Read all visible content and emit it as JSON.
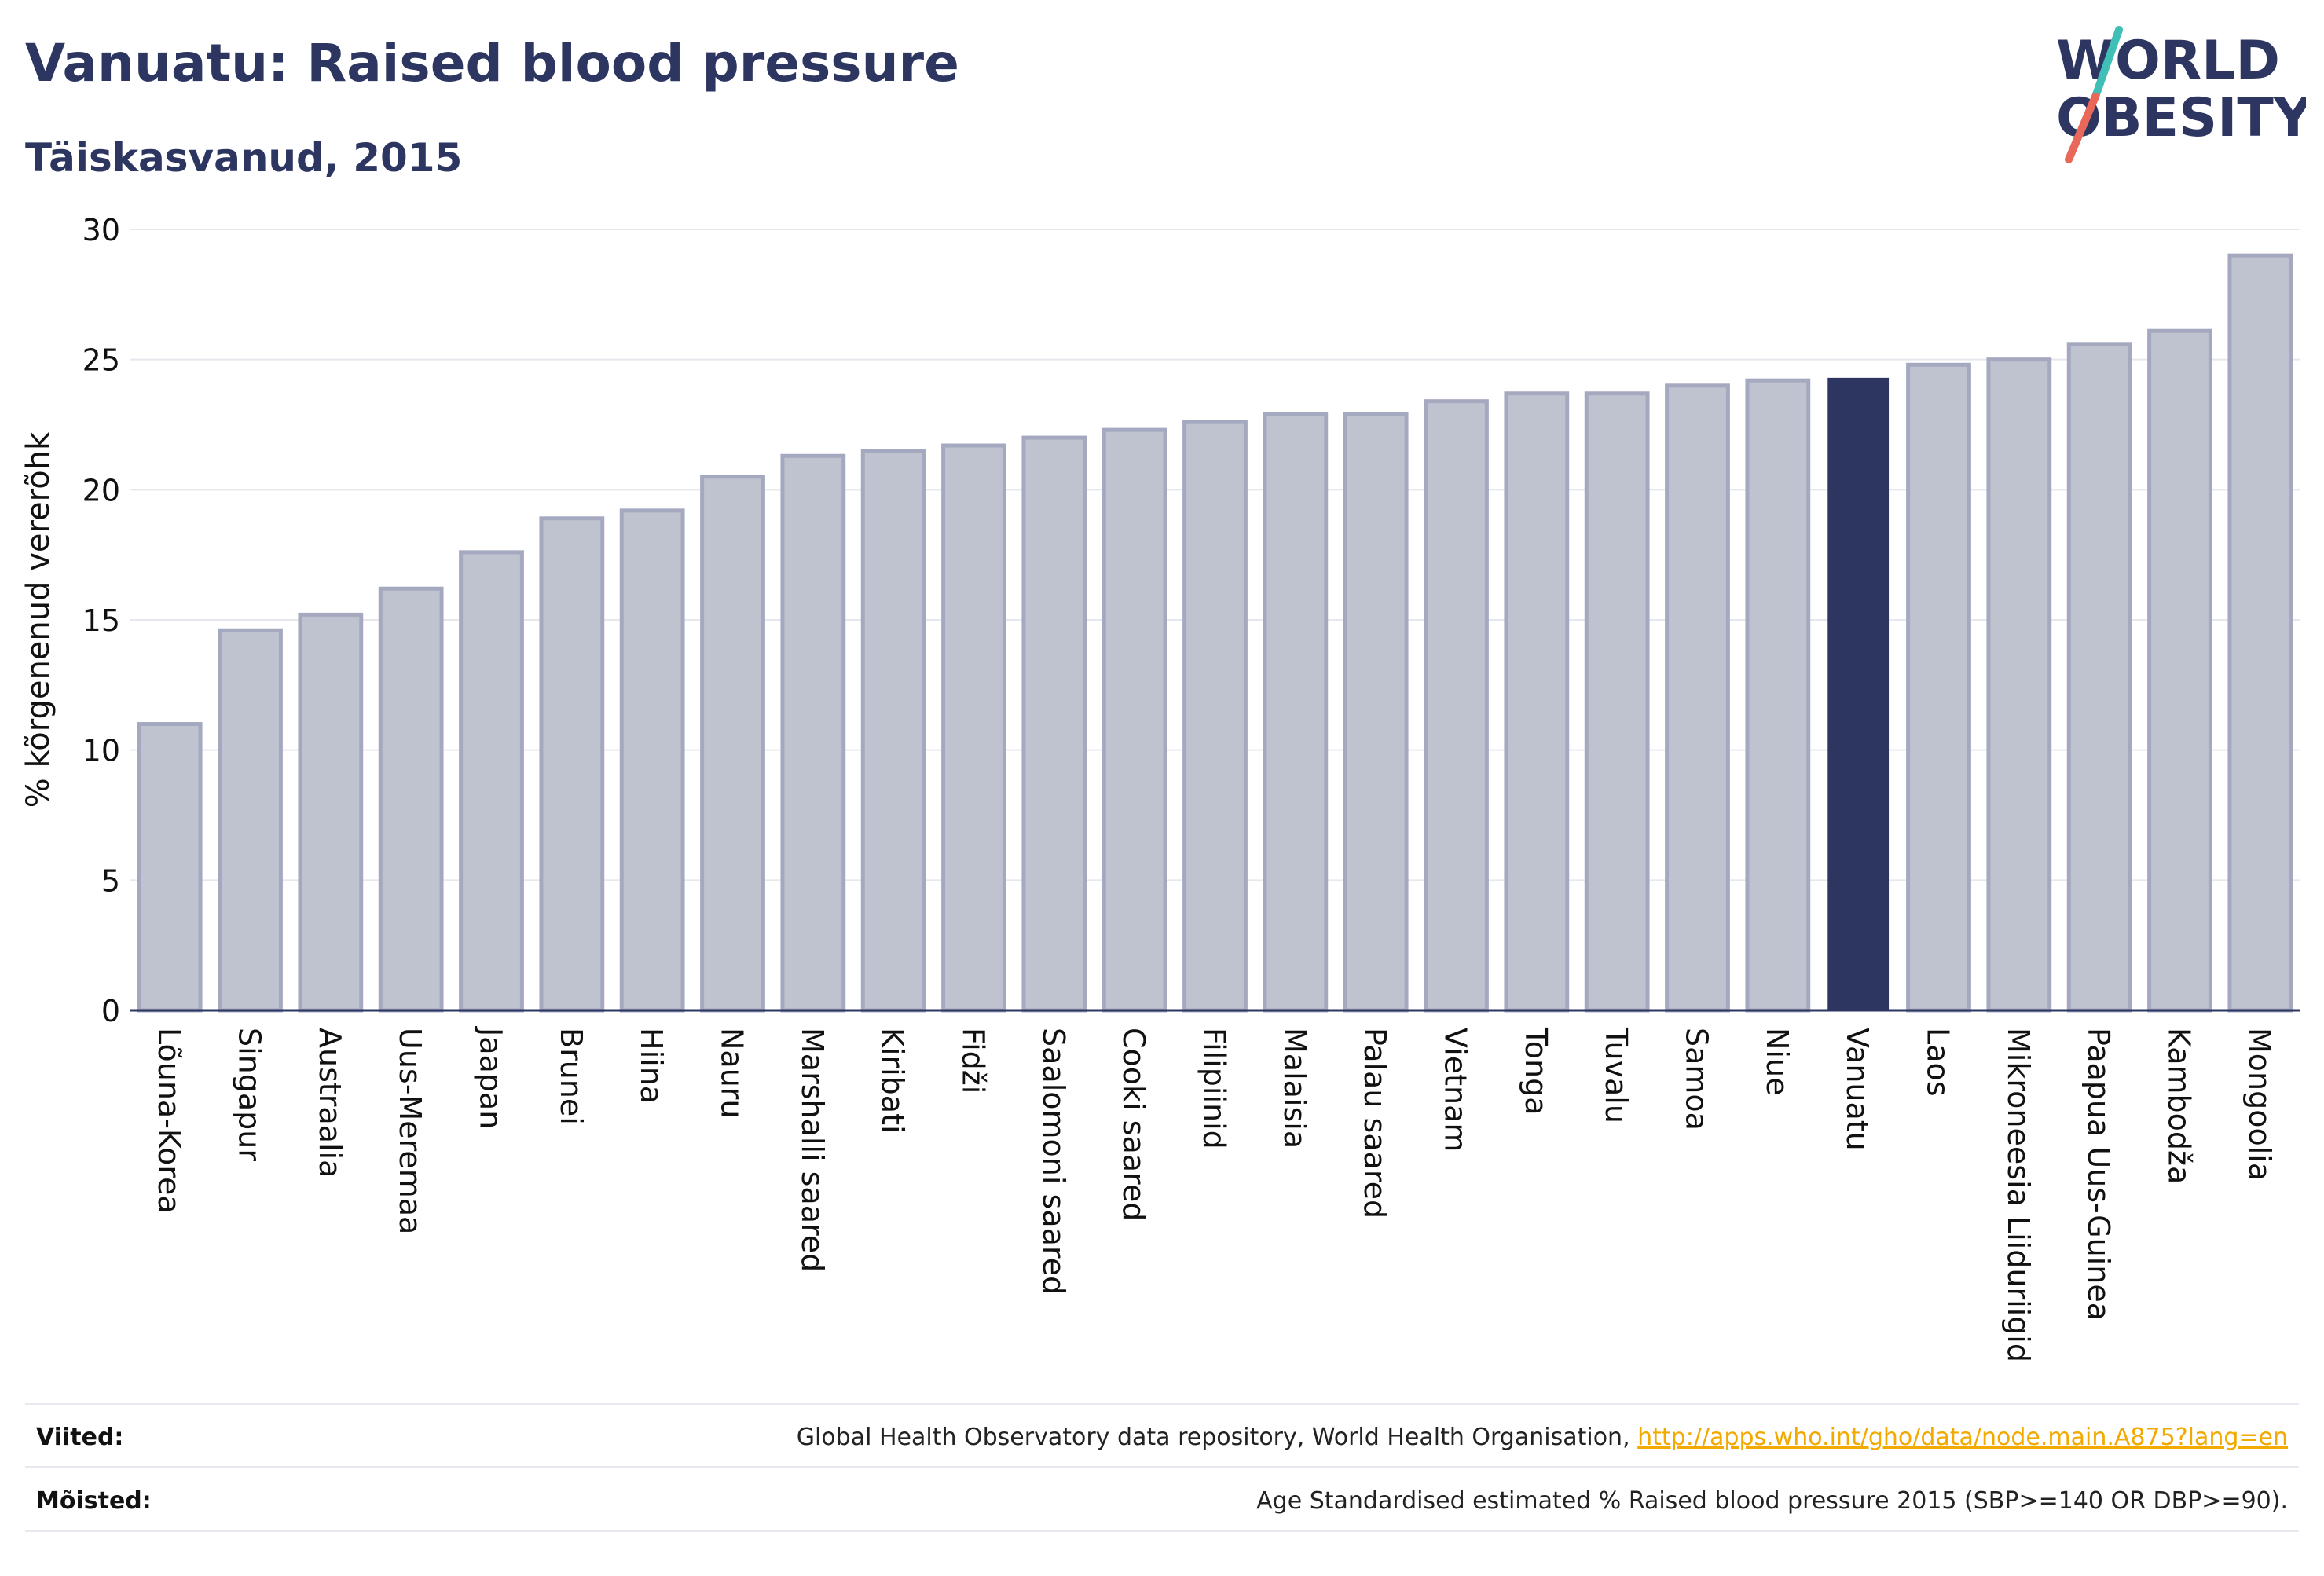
{
  "title": "Vanuatu: Raised blood pressure",
  "subtitle": "Täiskasvanud, 2015",
  "logo": {
    "line1": "WORLD",
    "line2": "OBESITY",
    "slash_colors": [
      "#3fbfb5",
      "#e8685a"
    ]
  },
  "colors": {
    "bar": "#bfc3d0",
    "bar_border": "#a4a9bf",
    "highlight": "#2d3561",
    "text": "#2d3561",
    "link": "#f2a900"
  },
  "chart_data": {
    "type": "bar",
    "title": "Vanuatu: Raised blood pressure",
    "subtitle": "Täiskasvanud, 2015",
    "ylabel": "% kõrgenenud vererõhk",
    "xlabel": "",
    "ylim": [
      0,
      30
    ],
    "yticks": [
      0,
      5,
      10,
      15,
      20,
      25,
      30
    ],
    "grid": true,
    "highlight": "Vanuatu",
    "categories": [
      "Lõuna-Korea",
      "Singapur",
      "Austraalia",
      "Uus-Meremaa",
      "Jaapan",
      "Brunei",
      "Hiina",
      "Nauru",
      "Marshalli saared",
      "Kiribati",
      "Fidži",
      "Saalomoni saared",
      "Cooki saared",
      "Filipiinid",
      "Malaisia",
      "Palau saared",
      "Vietnam",
      "Tonga",
      "Tuvalu",
      "Samoa",
      "Niue",
      "Vanuatu",
      "Laos",
      "Mikroneesia Liiduriigid",
      "Paapua Uus-Guinea",
      "Kambodža",
      "Mongoolia"
    ],
    "values": [
      11.0,
      14.6,
      15.2,
      16.2,
      17.6,
      18.9,
      19.2,
      20.5,
      21.3,
      21.5,
      21.7,
      22.0,
      22.3,
      22.6,
      22.9,
      22.9,
      23.4,
      23.7,
      23.7,
      24.0,
      24.2,
      24.3,
      24.8,
      25.0,
      25.6,
      26.1,
      29.0
    ]
  },
  "footer": {
    "sources_label": "Viited:",
    "sources_text": "Global Health Observatory data repository, World Health Organisation, ",
    "sources_link": "http://apps.who.int/gho/data/node.main.A875?lang=en",
    "definitions_label": "Mõisted:",
    "definitions_text": "Age Standardised estimated % Raised blood pressure 2015 (SBP>=140 OR DBP>=90)."
  }
}
